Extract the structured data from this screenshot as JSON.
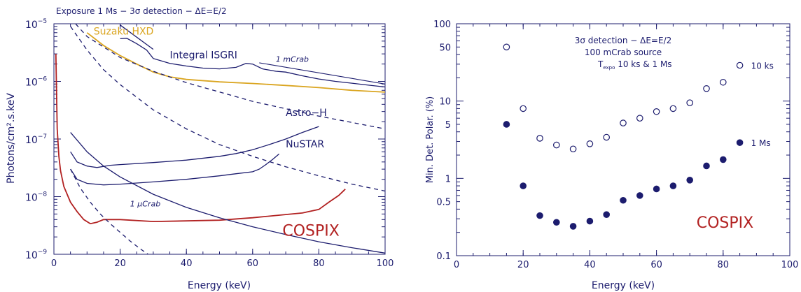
{
  "chart_data": [
    {
      "type": "line",
      "title": "Exposure 1 Ms − 3σ detection − ΔE=E/2",
      "xlabel": "Energy (keV)",
      "ylabel": "Photons/cm².s.keV",
      "yscale": "log",
      "xlim": [
        0,
        100
      ],
      "ylim": [
        1e-09,
        1e-05
      ],
      "x_ticks": [
        0,
        20,
        40,
        60,
        80,
        100
      ],
      "y_ticks": [
        {
          "value": 1e-09,
          "base": "10",
          "exp": "−9"
        },
        {
          "value": 1e-08,
          "base": "10",
          "exp": "−8"
        },
        {
          "value": 1e-07,
          "base": "10",
          "exp": "−7"
        },
        {
          "value": 1e-06,
          "base": "10",
          "exp": "−6"
        },
        {
          "value": 1e-05,
          "base": "10",
          "exp": "−5"
        }
      ],
      "grid": false,
      "series": [
        {
          "name": "Suzaku HXD",
          "color": "#daa520",
          "style": "solid",
          "x": [
            10,
            15,
            20,
            25,
            30,
            35,
            40,
            50,
            60,
            70,
            80,
            90,
            100
          ],
          "y": [
            7e-06,
            4.2e-06,
            2.8e-06,
            2e-06,
            1.45e-06,
            1.2e-06,
            1.08e-06,
            9.8e-07,
            9.2e-07,
            8.5e-07,
            7.8e-07,
            7e-07,
            6.5e-07
          ]
        },
        {
          "name": "Integral ISGRI",
          "color": "#1c1c6e",
          "style": "solid",
          "x": [
            20,
            22,
            25,
            28,
            30,
            35,
            40,
            45,
            50,
            55,
            58,
            60,
            63,
            67,
            70,
            75,
            80,
            85,
            90,
            95,
            100
          ],
          "y": [
            5.5e-06,
            5.6e-06,
            4.5e-06,
            3.5e-06,
            2.5e-06,
            2.05e-06,
            1.85e-06,
            1.7e-06,
            1.65e-06,
            1.75e-06,
            2.05e-06,
            2e-06,
            1.65e-06,
            1.5e-06,
            1.45e-06,
            1.25e-06,
            1.1e-06,
            1e-06,
            9.3e-07,
            8.6e-07,
            8e-07
          ]
        },
        {
          "name": "Astro−H",
          "color": "#1c1c6e",
          "style": "solid",
          "x": [
            5,
            7,
            10,
            13,
            17,
            20,
            30,
            40,
            50,
            55,
            60,
            65,
            70,
            75,
            80
          ],
          "y": [
            6e-08,
            4e-08,
            3.4e-08,
            3.2e-08,
            3.5e-08,
            3.6e-08,
            3.9e-08,
            4.3e-08,
            5e-08,
            5.6e-08,
            6.5e-08,
            8e-08,
            1e-07,
            1.3e-07,
            1.65e-07
          ]
        },
        {
          "name": "NuSTAR",
          "color": "#1c1c6e",
          "style": "solid",
          "x": [
            5,
            7,
            10,
            15,
            20,
            30,
            40,
            50,
            55,
            60,
            62,
            64,
            66,
            68
          ],
          "y": [
            3e-08,
            2e-08,
            1.7e-08,
            1.6e-08,
            1.65e-08,
            1.8e-08,
            2e-08,
            2.3e-08,
            2.5e-08,
            2.7e-08,
            3e-08,
            3.6e-08,
            4.4e-08,
            5.5e-08
          ]
        },
        {
          "name": "COSPIX",
          "color": "#b22222",
          "style": "solid",
          "x": [
            0.6,
            1,
            1.5,
            2,
            3,
            4,
            5,
            7,
            9,
            11,
            13,
            15,
            20,
            30,
            40,
            50,
            60,
            70,
            75,
            80,
            83,
            86,
            88
          ],
          "y": [
            3e-06,
            1.5e-07,
            5e-08,
            2.8e-08,
            1.5e-08,
            1.1e-08,
            8e-09,
            5.5e-09,
            4e-09,
            3.4e-09,
            3.6e-09,
            4e-09,
            4e-09,
            3.7e-09,
            3.8e-09,
            3.9e-09,
            4.3e-09,
            4.9e-09,
            5.2e-09,
            6e-09,
            8e-09,
            1.05e-08,
            1.35e-08
          ]
        },
        {
          "name": "1 mCrab",
          "color": "#1c1c6e",
          "style": "solid",
          "x": [
            20,
            30
          ],
          "y": [
            9.5e-06,
            3.6e-06
          ],
          "x2": [
            62,
            100
          ],
          "y2": [
            2.1e-06,
            9e-07
          ]
        },
        {
          "name": "1 μCrab",
          "color": "#1c1c6e",
          "style": "solid",
          "x": [
            5,
            10,
            15,
            20,
            30,
            40,
            50,
            60,
            70,
            80,
            90,
            100
          ],
          "y": [
            1.3e-07,
            6e-08,
            3.4e-08,
            2.2e-08,
            1.1e-08,
            6.5e-09,
            4.3e-09,
            3e-09,
            2.2e-09,
            1.65e-09,
            1.3e-09,
            1.05e-09
          ]
        },
        {
          "name": "",
          "color": "#1c1c6e",
          "style": "dashed",
          "x": [
            5,
            10,
            20,
            30,
            40,
            60,
            80,
            100
          ],
          "y": [
            1.25e-05,
            6e-06,
            2.6e-06,
            1.5e-06,
            9.5e-07,
            4.5e-07,
            2.5e-07,
            1.5e-07
          ]
        },
        {
          "name": "",
          "color": "#1c1c6e",
          "style": "dashed",
          "x": [
            5,
            10,
            15,
            20,
            30,
            40,
            50,
            60,
            70,
            80,
            90,
            100
          ],
          "y": [
            9e-06,
            3.5e-06,
            1.6e-06,
            8.8e-07,
            3.2e-07,
            1.5e-07,
            8e-08,
            5e-08,
            3.3e-08,
            2.3e-08,
            1.65e-08,
            1.25e-08
          ]
        },
        {
          "name": "",
          "color": "#1c1c6e",
          "style": "dashed",
          "x": [
            5,
            8,
            11,
            14,
            17,
            20,
            23,
            26,
            29
          ],
          "y": [
            3e-08,
            1.4e-08,
            8e-09,
            5e-09,
            3.4e-09,
            2.4e-09,
            1.7e-09,
            1.25e-09,
            9.5e-10
          ]
        }
      ],
      "annotations": [
        {
          "text": "Suzaku HXD",
          "color": "#daa520",
          "x": 12,
          "y": 6.5e-06
        },
        {
          "text": "Integral ISGRI",
          "color": "#1c1c6e",
          "x": 35,
          "y": 2.5e-06
        },
        {
          "text": "1 mCrab",
          "color": "#1c1c6e",
          "x": 67,
          "y": 2.2e-06
        },
        {
          "text": "Astro−H",
          "color": "#1c1c6e",
          "x": 70,
          "y": 2.5e-07
        },
        {
          "text": "NuSTAR",
          "color": "#1c1c6e",
          "x": 70,
          "y": 7.2e-08
        },
        {
          "text": "1 μCrab",
          "color": "#1c1c6e",
          "x": 23,
          "y": 6.8e-09
        },
        {
          "text": "COSPIX",
          "color": "#b22222",
          "x": 69,
          "y": 2.1e-09
        }
      ]
    },
    {
      "type": "scatter",
      "xlabel": "Energy (keV)",
      "ylabel": "Min. Det. Polar. (%)",
      "yscale": "log",
      "xlim": [
        0,
        100
      ],
      "ylim": [
        0.1,
        100
      ],
      "x_ticks": [
        0,
        20,
        40,
        60,
        80,
        100
      ],
      "y_ticks": [
        0.1,
        0.5,
        1,
        5,
        10,
        50,
        100
      ],
      "y_tick_labels": [
        "0.1",
        "0.5",
        "1",
        "5",
        "10",
        "50",
        "100"
      ],
      "grid": false,
      "annotation_lines": [
        "3σ detection − ΔE=E/2",
        "100 mCrab source",
        "T",
        "expo",
        " 10 ks & 1 Ms"
      ],
      "series": [
        {
          "name": "10 ks",
          "marker": "open-circle",
          "color": "#1c1c6e",
          "x": [
            15,
            20,
            25,
            30,
            35,
            40,
            45,
            50,
            55,
            60,
            65,
            70,
            75,
            80,
            85
          ],
          "y": [
            50,
            8,
            3.3,
            2.7,
            2.4,
            2.8,
            3.4,
            5.2,
            6,
            7.3,
            8,
            9.5,
            14.5,
            17.5,
            29
          ]
        },
        {
          "name": "1 Ms",
          "marker": "filled-circle",
          "color": "#1c1c6e",
          "x": [
            15,
            20,
            25,
            30,
            35,
            40,
            45,
            50,
            55,
            60,
            65,
            70,
            75,
            80,
            85
          ],
          "y": [
            5,
            0.8,
            0.33,
            0.27,
            0.24,
            0.28,
            0.34,
            0.52,
            0.6,
            0.73,
            0.8,
            0.95,
            1.45,
            1.75,
            2.9
          ]
        }
      ],
      "annotations": [
        {
          "text": "COSPIX",
          "color": "#b22222",
          "x": 72,
          "y": 0.23
        }
      ]
    }
  ]
}
